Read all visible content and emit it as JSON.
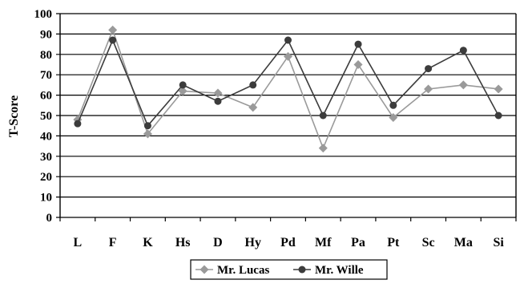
{
  "chart_data": {
    "type": "line",
    "ylabel": "T-Score",
    "xlabel": "",
    "ylim": [
      0,
      100
    ],
    "yticks": [
      "0",
      "10",
      "20",
      "30",
      "40",
      "50",
      "60",
      "70",
      "80",
      "90",
      "100"
    ],
    "categories": [
      "L",
      "F",
      "K",
      "Hs",
      "D",
      "Hy",
      "Pd",
      "Mf",
      "Pa",
      "Pt",
      "Sc",
      "Ma",
      "Si"
    ],
    "grid": true,
    "legend": "bottom",
    "series": [
      {
        "name": "Mr. Lucas",
        "color": "#9a9a9a",
        "marker": "diamond",
        "values": [
          48,
          92,
          41,
          62,
          61,
          54,
          79,
          34,
          75,
          49,
          63,
          65,
          63
        ]
      },
      {
        "name": "Mr. Wille",
        "color": "#3c3c3c",
        "marker": "circle",
        "values": [
          46,
          87,
          45,
          65,
          57,
          65,
          87,
          50,
          85,
          55,
          73,
          82,
          50
        ]
      }
    ]
  }
}
